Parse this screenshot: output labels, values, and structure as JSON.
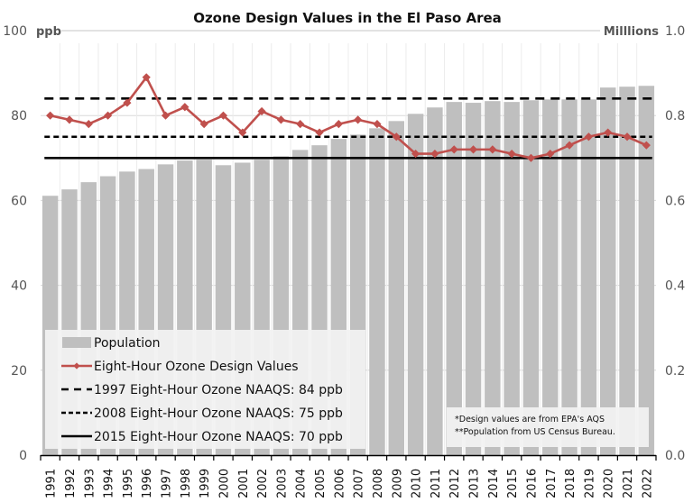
{
  "chart_data": {
    "type": "bar+line",
    "title": "Ozone Design Values in the El Paso Area",
    "categories": [
      "1991",
      "1992",
      "1993",
      "1994",
      "1995",
      "1996",
      "1997",
      "1998",
      "1999",
      "2000",
      "2001",
      "2002",
      "2003",
      "2004",
      "2005",
      "2006",
      "2007",
      "2008",
      "2009",
      "2010",
      "2011",
      "2012",
      "2013",
      "2014",
      "2015",
      "2016",
      "2017",
      "2018",
      "2019",
      "2020",
      "2021",
      "2022"
    ],
    "left_axis": {
      "label": "ppb",
      "range": [
        0,
        100
      ],
      "ticks": [
        "0",
        "20",
        "40",
        "60",
        "80",
        "100"
      ]
    },
    "right_axis": {
      "label": "Milllions",
      "range": [
        0,
        1.0
      ],
      "ticks": [
        "0.0",
        "0.2",
        "0.4",
        "0.6",
        "0.8",
        "1.0"
      ]
    },
    "series": [
      {
        "name": "Population",
        "type": "bar",
        "axis": "right",
        "color": "#bfbfbf",
        "values": [
          0.611,
          0.626,
          0.643,
          0.657,
          0.668,
          0.674,
          0.685,
          0.694,
          0.696,
          0.683,
          0.689,
          0.696,
          0.704,
          0.719,
          0.73,
          0.745,
          0.755,
          0.77,
          0.787,
          0.804,
          0.819,
          0.832,
          0.83,
          0.834,
          0.832,
          0.836,
          0.838,
          0.838,
          0.838,
          0.866,
          0.868,
          0.87
        ]
      },
      {
        "name": "Eight-Hour Ozone Design Values",
        "type": "line",
        "axis": "left",
        "color": "#c0504d",
        "marker": "diamond",
        "values": [
          80,
          79,
          78,
          80,
          83,
          89,
          80,
          82,
          78,
          80,
          76,
          81,
          79,
          78,
          76,
          78,
          79,
          78,
          75,
          71,
          71,
          72,
          72,
          72,
          71,
          70,
          71,
          73,
          75,
          76,
          75,
          73
        ]
      },
      {
        "name": "1997 Eight-Hour Ozone NAAQS: 84 ppb",
        "type": "hline",
        "axis": "left",
        "value": 84,
        "style": "long-dash",
        "color": "#000000"
      },
      {
        "name": "2008 Eight-Hour Ozone NAAQS: 75 ppb",
        "type": "hline",
        "axis": "left",
        "value": 75,
        "style": "short-dash",
        "color": "#000000"
      },
      {
        "name": "2015 Eight-Hour Ozone NAAQS: 70 ppb",
        "type": "hline",
        "axis": "left",
        "value": 70,
        "style": "solid",
        "color": "#000000"
      }
    ],
    "legend": {
      "placement": "bottom-left",
      "entries": [
        "Population",
        "Eight-Hour Ozone Design Values",
        "1997 Eight-Hour Ozone NAAQS: 84 ppb",
        "2008 Eight-Hour Ozone NAAQS: 75 ppb",
        "2015 Eight-Hour Ozone NAAQS: 70 ppb"
      ]
    },
    "annotations": [
      "*Design values are from EPA's AQS",
      "**Population from US Census Bureau."
    ],
    "grid": {
      "horizontal": true,
      "vertical": true
    }
  }
}
